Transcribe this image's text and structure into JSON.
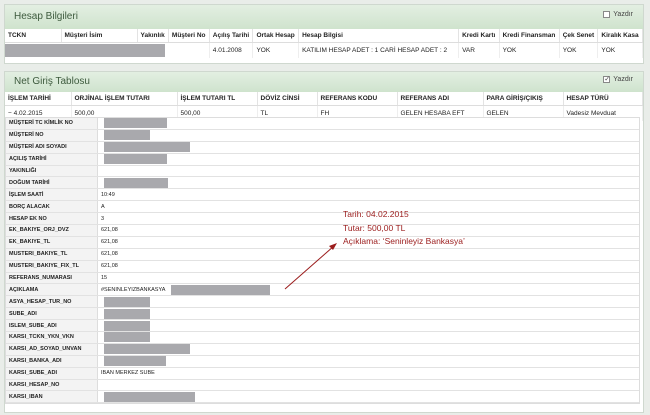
{
  "account_panel": {
    "title": "Hesap Bilgileri",
    "print_label": "Yazdır",
    "print_checked": false,
    "columns": [
      "TCKN",
      "Müşteri İsim",
      "Yakınlık",
      "Müşteri No",
      "Açılış Tarihi",
      "Ortak Hesap",
      "Hesap Bilgisi",
      "Kredi Kartı",
      "Kredi Finansman",
      "Çek Senet",
      "Kiralık Kasa"
    ],
    "row": {
      "opening_date": "4.01.2008",
      "joint_account": "YOK",
      "account_info": "KATILIM HESAP ADET : 1 CARİ HESAP ADET : 2",
      "credit_card": "VAR",
      "credit_financing": "YOK",
      "cheque": "YOK",
      "safe_box": "YOK"
    }
  },
  "net_panel": {
    "title": "Net Giriş Tablosu",
    "print_label": "Yazdır",
    "print_checked": true,
    "columns": [
      "İŞLEM TARİHİ",
      "ORJİNAL İŞLEM TUTARI",
      "İŞLEM TUTARI TL",
      "DÖVİZ CİNSİ",
      "REFERANS KODU",
      "REFERANS ADI",
      "PARA GİRİŞ/ÇIKIŞ",
      "HESAP TÜRÜ"
    ],
    "row": {
      "date": "4.02.2015",
      "original_amount": "500,00",
      "amount_tl": "500,00",
      "currency": "TL",
      "ref_code": "FH",
      "ref_name": "GELEN HESABA EFT",
      "direction": "GELEN",
      "account_type": "Vadesiz Mevduat"
    },
    "details": [
      {
        "label": "MÜŞTERİ TC KİMLİK NO",
        "value": ""
      },
      {
        "label": "MÜŞTERİ NO",
        "value": ""
      },
      {
        "label": "MÜŞTERİ ADI SOYADI",
        "value": ""
      },
      {
        "label": "AÇILIŞ TARİHİ",
        "value": ""
      },
      {
        "label": "YAKINLIĞI",
        "value": ""
      },
      {
        "label": "DOĞUM TARİHİ",
        "value": ""
      },
      {
        "label": "İŞLEM SAATİ",
        "value": "10:49"
      },
      {
        "label": "BORÇ ALACAK",
        "value": "A"
      },
      {
        "label": "HESAP EK NO",
        "value": "3"
      },
      {
        "label": "EK_BAKIYE_ORJ_DVZ",
        "value": "621,08"
      },
      {
        "label": "EK_BAKIYE_TL",
        "value": "621,08"
      },
      {
        "label": "MUSTERI_BAKIYE_TL",
        "value": "621,08"
      },
      {
        "label": "MUSTERI_BAKIYE_FIX_TL",
        "value": "621,08"
      },
      {
        "label": "REFERANS_NUMARASI",
        "value": "15"
      },
      {
        "label": "AÇIKLAMA",
        "value": "#SENINLEYIZBANKASYA"
      },
      {
        "label": "ASYA_HESAP_TUR_NO",
        "value": ""
      },
      {
        "label": "SUBE_ADI",
        "value": ""
      },
      {
        "label": "ISLEM_SUBE_ADI",
        "value": ""
      },
      {
        "label": "KARSI_TCKN_YKN_VKN",
        "value": ""
      },
      {
        "label": "KARSI_AD_SOYAD_UNVAN",
        "value": ""
      },
      {
        "label": "KARSI_BANKA_ADI",
        "value": ""
      },
      {
        "label": "KARSI_SUBE_ADI",
        "value": "IBAN MERKEZ SUBE"
      },
      {
        "label": "KARSI_HESAP_NO",
        "value": ""
      },
      {
        "label": "KARSI_IBAN",
        "value": ""
      }
    ]
  },
  "annotation": {
    "line1": "Tarih: 04.02.2015",
    "line2": "Tutar: 500,00 TL",
    "line3": "Açıklama: ‘Seninleyiz Bankasya’",
    "color": "#9b1c1c"
  }
}
